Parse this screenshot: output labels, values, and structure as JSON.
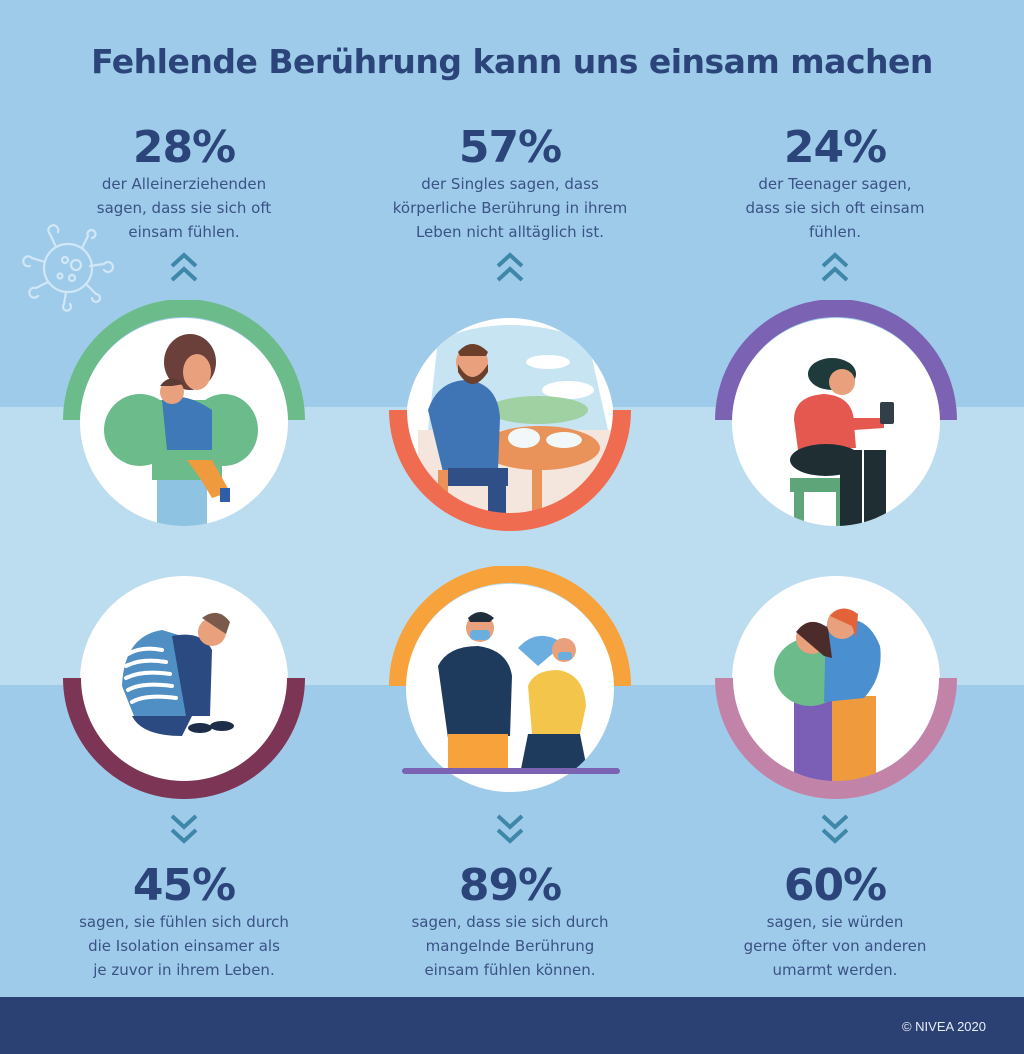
{
  "title": "Fehlende Berührung kann uns einsam machen",
  "colors": {
    "background": "#9fcbea",
    "band": "#bcdcef",
    "text": "#2b4479",
    "chevron": "#3f87a8",
    "footer": "#2b4174"
  },
  "stats_top": [
    {
      "value": "28%",
      "lines": [
        "der Alleinerziehenden",
        "sagen, dass sie sich oft",
        "einsam fühlen."
      ],
      "arc_color": "#6bbb8b",
      "illustration": "mother-hugging-child"
    },
    {
      "value": "57%",
      "lines": [
        "der Singles sagen, dass",
        "körperliche Berührung in ihrem",
        "Leben nicht alltäglich ist."
      ],
      "arc_color": "#ef6c50",
      "illustration": "man-eating-alone"
    },
    {
      "value": "24%",
      "lines": [
        "der Teenager sagen,",
        "dass sie sich oft einsam",
        "fühlen."
      ],
      "arc_color": "#7b62b3",
      "illustration": "teen-crying-phone"
    }
  ],
  "stats_bottom": [
    {
      "value": "45%",
      "lines": [
        "sagen, sie fühlen sich durch",
        "die Isolation einsamer als",
        "je zuvor in ihrem Leben."
      ],
      "arc_color": "#7d3556",
      "illustration": "person-hugging-knees"
    },
    {
      "value": "89%",
      "lines": [
        "sagen, dass sie sich durch",
        "mangelnde Berührung",
        "einsam fühlen können."
      ],
      "arc_color": "#f7a23a",
      "illustration": "masked-couple-distanced"
    },
    {
      "value": "60%",
      "lines": [
        "sagen, sie würden",
        "gerne öfter von anderen",
        "umarmt werden."
      ],
      "arc_color": "#c184a8",
      "illustration": "friends-hugging"
    }
  ],
  "footer": {
    "copyright": "© NIVEA 2020"
  }
}
